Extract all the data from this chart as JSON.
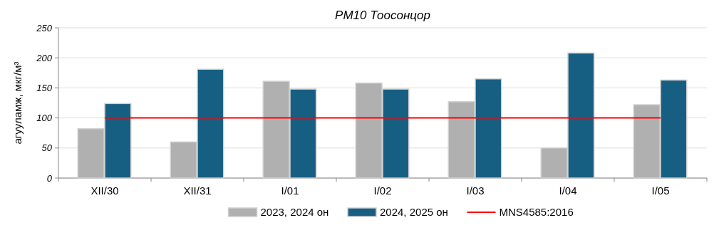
{
  "chart_data": {
    "type": "bar",
    "title": "PM10 Тоосонцор",
    "ylabel": "агууламж, мкг/м³",
    "categories": [
      "XII/30",
      "XII/31",
      "I/01",
      "I/02",
      "I/03",
      "I/04",
      "I/05"
    ],
    "series": [
      {
        "name": "2023, 2024 он",
        "color": "#b0b0b0",
        "values": [
          82,
          60,
          161,
          158,
          127,
          50,
          122
        ]
      },
      {
        "name": "2024, 2025 он",
        "color": "#175f82",
        "values": [
          124,
          181,
          148,
          148,
          165,
          208,
          163
        ]
      },
      {
        "name": "MNS4585:2016",
        "type": "line",
        "color": "#ff0000",
        "values": [
          100,
          100,
          100,
          100,
          100,
          100,
          100
        ],
        "marker": "none"
      }
    ],
    "ylim": [
      0,
      250
    ],
    "yticks": [
      0,
      50,
      100,
      150,
      200,
      250
    ],
    "grid": "y",
    "legend": "bottom"
  }
}
